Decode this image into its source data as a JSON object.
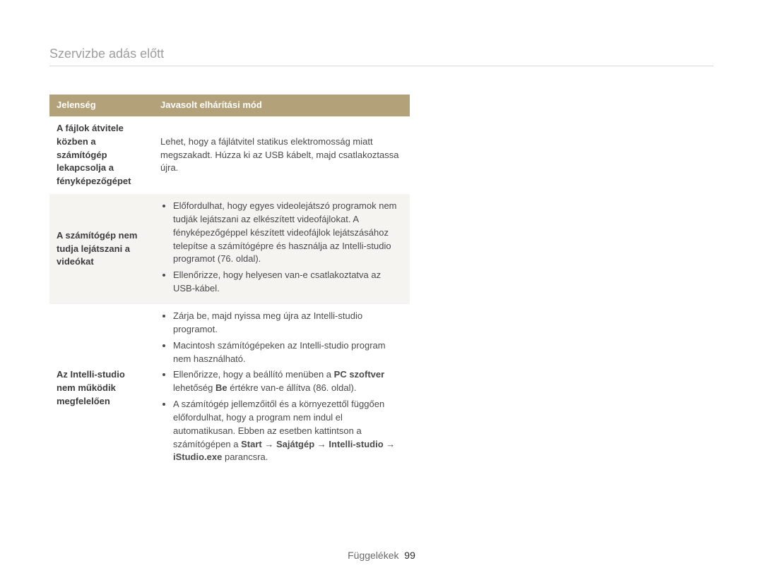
{
  "page": {
    "heading": "Szervizbe adás előtt",
    "footer_label": "Függelékek",
    "footer_page": "99"
  },
  "table": {
    "head": {
      "c1": "Jelenség",
      "c2": "Javasolt elhárítási mód"
    },
    "rows": [
      {
        "c1": "A fájlok átvitele közben a számítógép lekapcsolja a fényképezőgépet",
        "c2_plain": "Lehet, hogy a fájlátvitel statikus elektromosság miatt megszakadt. Húzza ki az USB kábelt, majd csatlakoztassa újra."
      },
      {
        "c1": "A számítógép nem tudja lejátszani a videókat",
        "b1": "Előfordulhat, hogy egyes videolejátszó programok nem tudják lejátszani az elkészített videofájlokat. A fényképezőgéppel készített videofájlok lejátszásához telepítse a számítógépre és használja az Intelli-studio programot (76. oldal).",
        "b2": "Ellenőrizze, hogy helyesen van-e csatlakoztatva az USB-kábel."
      },
      {
        "c1": "Az Intelli-studio nem működik megfelelően",
        "b1": "Zárja be, majd nyissa meg újra az Intelli-studio programot.",
        "b2": "Macintosh számítógépeken az Intelli-studio program nem használható.",
        "b3_pre": "Ellenőrizze, hogy a beállító menüben a ",
        "b3_bold1": "PC szoftver",
        "b3_mid1": " lehetőség ",
        "b3_bold2": "Be",
        "b3_post": " értékre van-e állítva (86. oldal).",
        "b4_pre": "A számítógép jellemzőitől és a környezettől függően előfordulhat, hogy a program nem indul el automatikusan. Ebben az esetben kattintson a számítógépen a ",
        "b4_bold1": "Start",
        "b4_mid1": " → ",
        "b4_bold2": "Sajátgép",
        "b4_mid2": " → ",
        "b4_bold3": "Intelli-studio",
        "b4_mid3": " → ",
        "b4_bold4": "iStudio.exe",
        "b4_post": " parancsra."
      }
    ]
  }
}
